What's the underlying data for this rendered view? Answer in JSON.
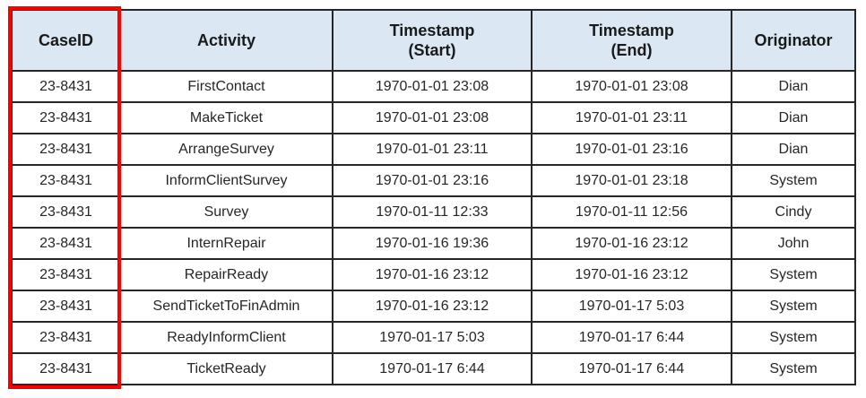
{
  "table": {
    "columns": [
      {
        "key": "caseid",
        "label": "CaseID"
      },
      {
        "key": "activity",
        "label": "Activity"
      },
      {
        "key": "tsstart",
        "label": "Timestamp\n(Start)"
      },
      {
        "key": "tsend",
        "label": "Timestamp\n(End)"
      },
      {
        "key": "originator",
        "label": "Originator"
      }
    ],
    "rows": [
      [
        "23-8431",
        "FirstContact",
        "1970-01-01 23:08",
        "1970-01-01 23:08",
        "Dian"
      ],
      [
        "23-8431",
        "MakeTicket",
        "1970-01-01 23:08",
        "1970-01-01 23:11",
        "Dian"
      ],
      [
        "23-8431",
        "ArrangeSurvey",
        "1970-01-01 23:11",
        "1970-01-01 23:16",
        "Dian"
      ],
      [
        "23-8431",
        "InformClientSurvey",
        "1970-01-01 23:16",
        "1970-01-01 23:18",
        "System"
      ],
      [
        "23-8431",
        "Survey",
        "1970-01-11 12:33",
        "1970-01-11 12:56",
        "Cindy"
      ],
      [
        "23-8431",
        "InternRepair",
        "1970-01-16 19:36",
        "1970-01-16 23:12",
        "John"
      ],
      [
        "23-8431",
        "RepairReady",
        "1970-01-16 23:12",
        "1970-01-16 23:12",
        "System"
      ],
      [
        "23-8431",
        "SendTicketToFinAdmin",
        "1970-01-16 23:12",
        "1970-01-17 5:03",
        "System"
      ],
      [
        "23-8431",
        "ReadyInformClient",
        "1970-01-17 5:03",
        "1970-01-17 6:44",
        "System"
      ],
      [
        "23-8431",
        "TicketReady",
        "1970-01-17 6:44",
        "1970-01-17 6:44",
        "System"
      ]
    ]
  },
  "annotation": {
    "caseid_highlight": "red rectangle outlining the CaseID column"
  },
  "colors": {
    "header_bg": "#dbe8f4",
    "border": "#262626",
    "highlight_red": "#fb0000",
    "body_text": "#262626"
  }
}
